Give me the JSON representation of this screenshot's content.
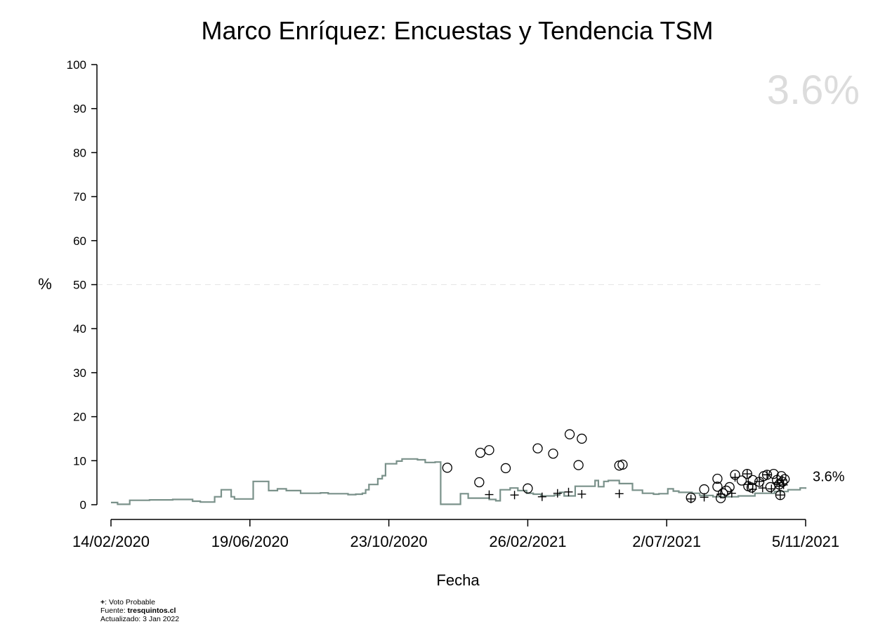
{
  "chart_data": {
    "type": "scatter",
    "title": "Marco Enríquez: Encuestas y Tendencia TSM",
    "xlabel": "Fecha",
    "ylabel": "%",
    "ylim": [
      0,
      100
    ],
    "xlim": [
      "2020-02-14",
      "2021-11-05"
    ],
    "yticks": [
      0,
      10,
      20,
      30,
      40,
      50,
      60,
      70,
      80,
      90,
      100
    ],
    "xticks": [
      "2020-02-14",
      "2020-06-19",
      "2020-10-23",
      "2021-02-26",
      "2021-07-02",
      "2021-11-05"
    ],
    "xtick_labels": [
      "14/02/2020",
      "19/06/2020",
      "23/10/2020",
      "26/02/2021",
      "2/07/2021",
      "5/11/2021"
    ],
    "reference_line": 50,
    "big_label": "3.6%",
    "end_label": "3.6%",
    "trend_color": "#7a918a",
    "trend": [
      [
        "2020-02-14",
        0.5
      ],
      [
        "2020-02-20",
        0.1
      ],
      [
        "2020-03-02",
        1.0
      ],
      [
        "2020-03-20",
        1.1
      ],
      [
        "2020-04-10",
        1.2
      ],
      [
        "2020-04-28",
        0.8
      ],
      [
        "2020-05-05",
        0.6
      ],
      [
        "2020-05-18",
        1.8
      ],
      [
        "2020-05-24",
        3.4
      ],
      [
        "2020-06-02",
        1.8
      ],
      [
        "2020-06-05",
        1.3
      ],
      [
        "2020-06-22",
        5.3
      ],
      [
        "2020-07-06",
        3.2
      ],
      [
        "2020-07-14",
        3.6
      ],
      [
        "2020-07-22",
        3.2
      ],
      [
        "2020-08-04",
        2.6
      ],
      [
        "2020-08-22",
        2.7
      ],
      [
        "2020-08-29",
        2.5
      ],
      [
        "2020-09-16",
        2.3
      ],
      [
        "2020-09-23",
        2.4
      ],
      [
        "2020-09-29",
        2.6
      ],
      [
        "2020-10-02",
        3.4
      ],
      [
        "2020-10-05",
        4.6
      ],
      [
        "2020-10-13",
        5.9
      ],
      [
        "2020-10-17",
        6.6
      ],
      [
        "2020-10-20",
        9.3
      ],
      [
        "2020-10-30",
        9.9
      ],
      [
        "2020-11-04",
        10.4
      ],
      [
        "2020-11-18",
        10.2
      ],
      [
        "2020-11-25",
        9.6
      ],
      [
        "2020-12-04",
        9.7
      ],
      [
        "2020-12-09",
        0.1
      ],
      [
        "2020-12-27",
        2.5
      ],
      [
        "2021-01-03",
        1.5
      ],
      [
        "2021-01-22",
        1.2
      ],
      [
        "2021-01-28",
        0.9
      ],
      [
        "2021-02-01",
        3.4
      ],
      [
        "2021-02-10",
        3.8
      ],
      [
        "2021-02-17",
        3.2
      ],
      [
        "2021-02-25",
        2.6
      ],
      [
        "2021-03-03",
        2.4
      ],
      [
        "2021-03-10",
        2.0
      ],
      [
        "2021-03-22",
        2.2
      ],
      [
        "2021-03-27",
        2.8
      ],
      [
        "2021-03-31",
        2.0
      ],
      [
        "2021-04-10",
        4.2
      ],
      [
        "2021-04-28",
        5.5
      ],
      [
        "2021-05-01",
        4.1
      ],
      [
        "2021-05-06",
        5.3
      ],
      [
        "2021-05-10",
        5.5
      ],
      [
        "2021-05-20",
        4.8
      ],
      [
        "2021-05-30",
        4.8
      ],
      [
        "2021-06-01",
        3.3
      ],
      [
        "2021-06-10",
        2.6
      ],
      [
        "2021-06-20",
        2.4
      ],
      [
        "2021-06-25",
        2.5
      ],
      [
        "2021-07-03",
        3.6
      ],
      [
        "2021-07-08",
        3.1
      ],
      [
        "2021-07-13",
        2.8
      ],
      [
        "2021-07-25",
        2.6
      ],
      [
        "2021-08-01",
        2.1
      ],
      [
        "2021-08-13",
        1.8
      ],
      [
        "2021-09-05",
        2.0
      ],
      [
        "2021-09-20",
        2.6
      ],
      [
        "2021-10-08",
        3.0
      ],
      [
        "2021-10-20",
        3.4
      ],
      [
        "2021-10-31",
        3.8
      ],
      [
        "2021-11-05",
        3.6
      ]
    ],
    "polls": [
      {
        "x": "2020-12-15",
        "y": 8.4
      },
      {
        "x": "2021-01-14",
        "y": 11.8
      },
      {
        "x": "2021-01-13",
        "y": 5.1
      },
      {
        "x": "2021-01-22",
        "y": 12.4
      },
      {
        "x": "2021-02-06",
        "y": 8.3
      },
      {
        "x": "2021-02-26",
        "y": 3.7
      },
      {
        "x": "2021-03-07",
        "y": 12.8
      },
      {
        "x": "2021-03-21",
        "y": 11.6
      },
      {
        "x": "2021-04-05",
        "y": 16.0
      },
      {
        "x": "2021-04-13",
        "y": 9.0
      },
      {
        "x": "2021-04-16",
        "y": 15.0
      },
      {
        "x": "2021-05-20",
        "y": 8.9
      },
      {
        "x": "2021-05-23",
        "y": 9.1
      },
      {
        "x": "2021-07-24",
        "y": 1.6
      },
      {
        "x": "2021-08-05",
        "y": 3.5
      },
      {
        "x": "2021-08-17",
        "y": 5.9
      },
      {
        "x": "2021-08-17",
        "y": 4.1
      },
      {
        "x": "2021-08-20",
        "y": 1.5
      },
      {
        "x": "2021-08-22",
        "y": 2.6
      },
      {
        "x": "2021-08-25",
        "y": 3.2
      },
      {
        "x": "2021-08-28",
        "y": 4.0
      },
      {
        "x": "2021-09-02",
        "y": 6.8
      },
      {
        "x": "2021-09-08",
        "y": 5.5
      },
      {
        "x": "2021-09-13",
        "y": 7.0
      },
      {
        "x": "2021-09-14",
        "y": 4.2
      },
      {
        "x": "2021-09-17",
        "y": 3.9
      },
      {
        "x": "2021-09-18",
        "y": 5.6
      },
      {
        "x": "2021-09-24",
        "y": 5.2
      },
      {
        "x": "2021-09-28",
        "y": 6.5
      },
      {
        "x": "2021-10-01",
        "y": 6.8
      },
      {
        "x": "2021-10-04",
        "y": 4.0
      },
      {
        "x": "2021-10-07",
        "y": 7.0
      },
      {
        "x": "2021-10-10",
        "y": 5.6
      },
      {
        "x": "2021-10-12",
        "y": 4.6
      },
      {
        "x": "2021-10-13",
        "y": 2.2
      },
      {
        "x": "2021-10-14",
        "y": 6.5
      },
      {
        "x": "2021-10-15",
        "y": 5.2
      },
      {
        "x": "2021-10-17",
        "y": 5.8
      }
    ],
    "voto_probable": [
      {
        "x": "2021-01-22",
        "y": 2.3
      },
      {
        "x": "2021-02-14",
        "y": 2.2
      },
      {
        "x": "2021-03-11",
        "y": 1.8
      },
      {
        "x": "2021-03-25",
        "y": 2.6
      },
      {
        "x": "2021-04-04",
        "y": 2.9
      },
      {
        "x": "2021-04-16",
        "y": 2.4
      },
      {
        "x": "2021-05-20",
        "y": 2.5
      },
      {
        "x": "2021-07-24",
        "y": 1.3
      },
      {
        "x": "2021-08-05",
        "y": 1.7
      },
      {
        "x": "2021-08-20",
        "y": 2.4
      },
      {
        "x": "2021-08-30",
        "y": 2.6
      },
      {
        "x": "2021-09-02",
        "y": 6.2
      },
      {
        "x": "2021-09-13",
        "y": 7.0
      },
      {
        "x": "2021-09-14",
        "y": 4.6
      },
      {
        "x": "2021-09-18",
        "y": 3.5
      },
      {
        "x": "2021-09-24",
        "y": 5.3
      },
      {
        "x": "2021-09-27",
        "y": 3.8
      },
      {
        "x": "2021-10-01",
        "y": 6.8
      },
      {
        "x": "2021-10-05",
        "y": 3.6
      },
      {
        "x": "2021-10-10",
        "y": 5.0
      },
      {
        "x": "2021-10-12",
        "y": 4.2
      },
      {
        "x": "2021-10-13",
        "y": 2.2
      },
      {
        "x": "2021-10-15",
        "y": 5.6
      },
      {
        "x": "2021-10-16",
        "y": 4.5
      }
    ]
  },
  "footnote": {
    "marker": "+",
    "marker_text": ": Voto Probable",
    "source_label": "Fuente: ",
    "source_value": "tresquintos.cl",
    "updated": "Actualizado: 3 Jan 2022"
  }
}
